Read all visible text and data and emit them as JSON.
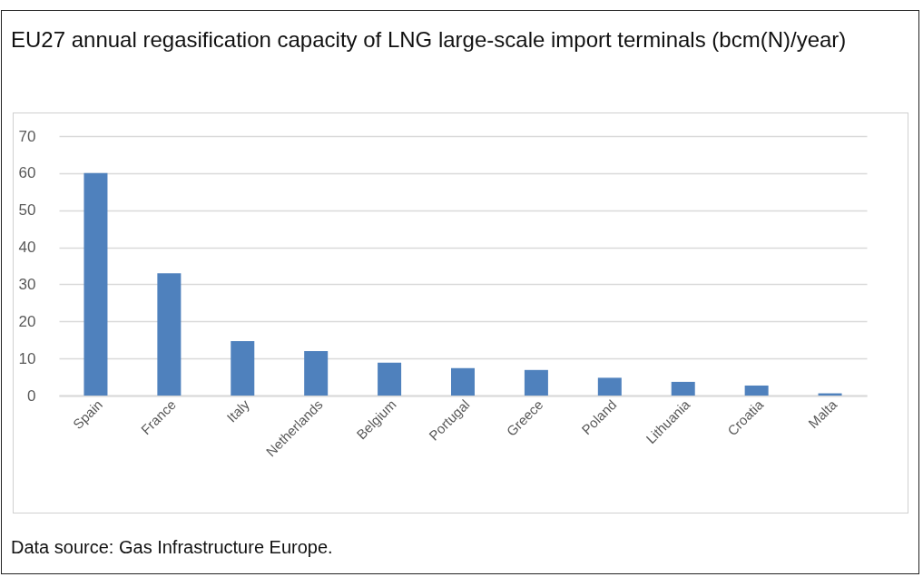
{
  "chart_data": {
    "type": "bar",
    "title": "EU27 annual regasification capacity of LNG large-scale import terminals (bcm(N)/year)",
    "categories": [
      "Spain",
      "France",
      "Italy",
      "Netherlands",
      "Belgium",
      "Portugal",
      "Greece",
      "Poland",
      "Lithuania",
      "Croatia",
      "Malta"
    ],
    "values": [
      60,
      33,
      14.7,
      12,
      8.9,
      7.4,
      6.9,
      4.8,
      3.7,
      2.7,
      0.6
    ],
    "color": "#4f81bd",
    "ylim": [
      0,
      70
    ],
    "yticks": [
      0,
      10,
      20,
      30,
      40,
      50,
      60,
      70
    ],
    "grid": "y",
    "annotations": [
      "Data source: Gas Infrastructure Europe."
    ]
  }
}
